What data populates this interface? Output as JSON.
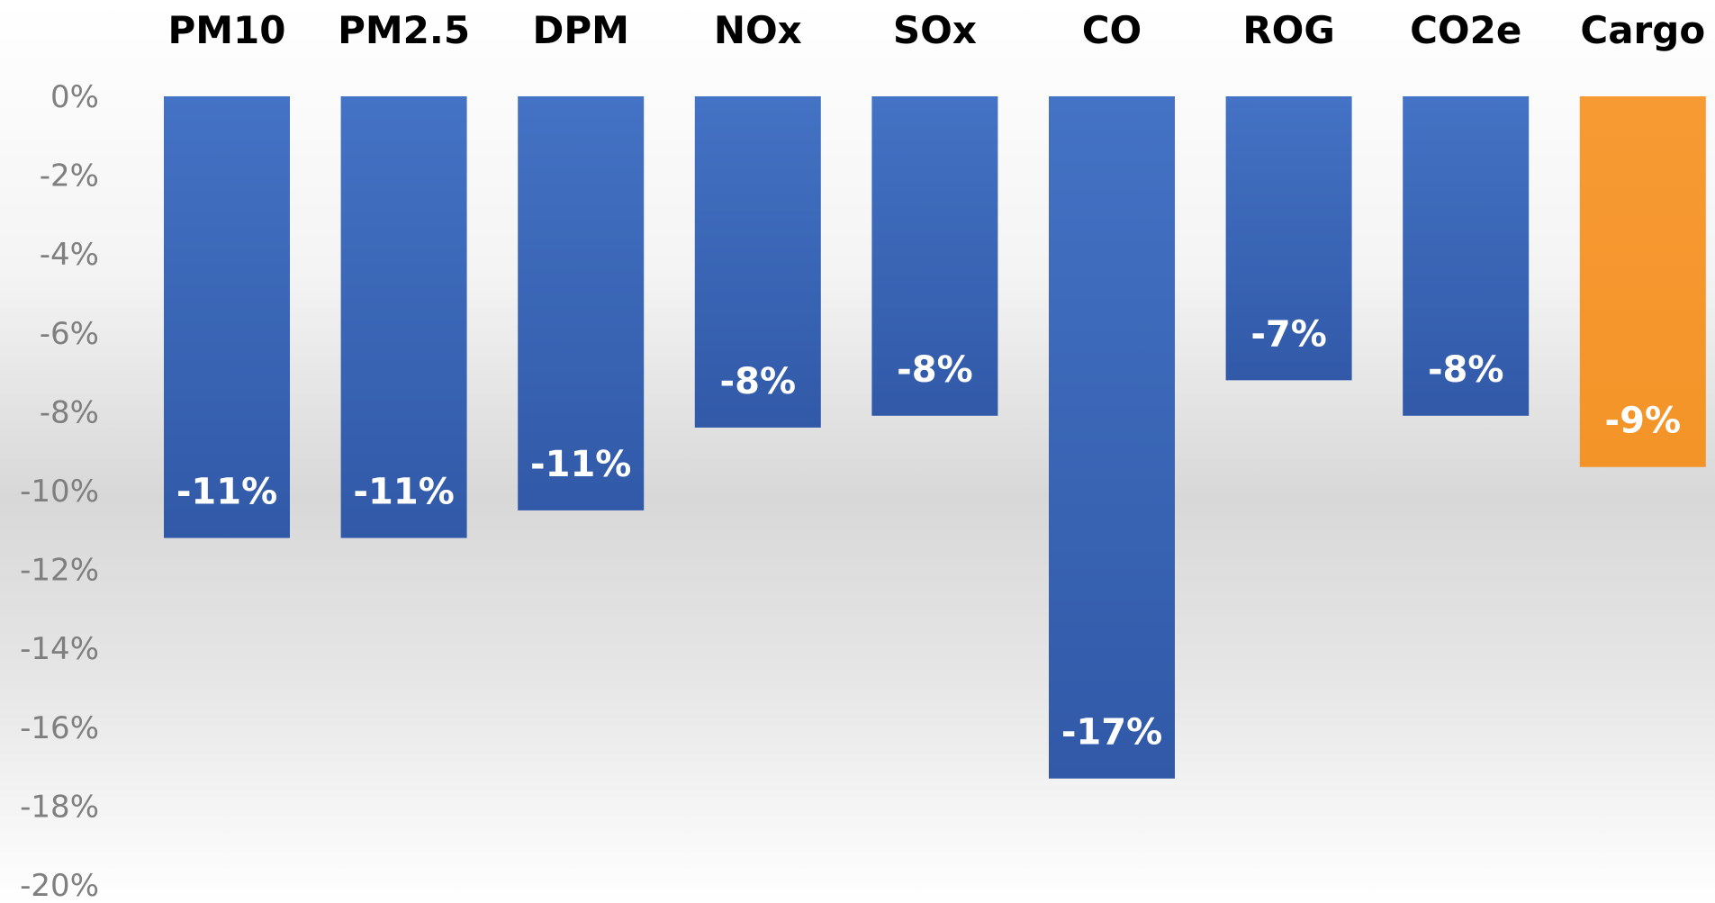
{
  "chart_data": {
    "type": "bar",
    "categories": [
      "PM10",
      "PM2.5",
      "DPM",
      "NOx",
      "SOx",
      "CO",
      "ROG",
      "CO2e",
      "Cargo"
    ],
    "values": [
      -11.2,
      -11.2,
      -10.5,
      -8.4,
      -8.1,
      -17.3,
      -7.2,
      -8.1,
      -9.4
    ],
    "data_labels": [
      "-11%",
      "-11%",
      "-11%",
      "-8%",
      "-8%",
      "-17%",
      "-7%",
      "-8%",
      "-9%"
    ],
    "colors": [
      "#3b65b8",
      "#3b65b8",
      "#3b65b8",
      "#3b65b8",
      "#3b65b8",
      "#3b65b8",
      "#3b65b8",
      "#3b65b8",
      "#f59a2f"
    ],
    "ylim": [
      -20,
      0
    ],
    "y_ticks": [
      0,
      -2,
      -4,
      -6,
      -8,
      -10,
      -12,
      -14,
      -16,
      -18,
      -20
    ],
    "y_tick_labels": [
      "0%",
      "-2%",
      "-4%",
      "-6%",
      "-8%",
      "-10%",
      "-12%",
      "-14%",
      "-16%",
      "-18%",
      "-20%"
    ],
    "category_axis_position": "top",
    "grid": false,
    "legend": "none",
    "title": "",
    "xlabel": "",
    "ylabel": ""
  }
}
